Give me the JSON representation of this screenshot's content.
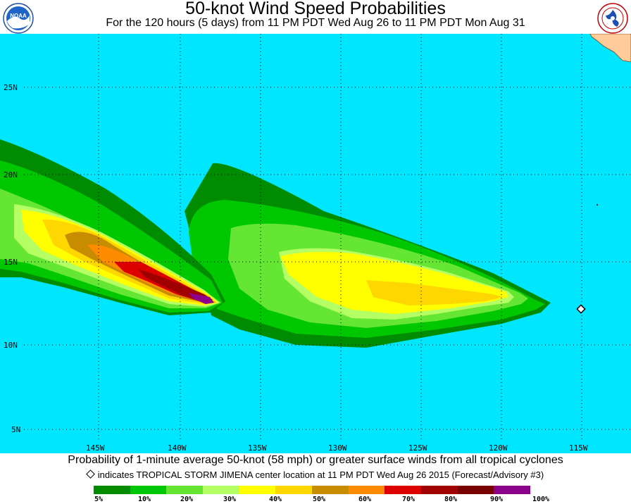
{
  "header": {
    "title": "50-knot Wind Speed Probabilities",
    "subtitle": "For the 120 hours (5 days) from 11 PM PDT Wed Aug 26 to 11 PM PDT Mon Aug 31",
    "left_logo": {
      "text": "NOAA",
      "icon": "noaa-logo"
    },
    "right_logo": {
      "text": "NATIONAL WEATHER SERVICE",
      "icon": "nws-logo"
    }
  },
  "map": {
    "ocean_color": "#00e6ff",
    "land_color": "#ffcc99",
    "lat_labels": [
      "25N",
      "20N",
      "15N",
      "10N",
      "5N"
    ],
    "lon_labels": [
      "145W",
      "140W",
      "135W",
      "130W",
      "125W",
      "120W",
      "115W"
    ],
    "storm_center": {
      "name": "TROPICAL STORM JIMENA",
      "lat": 12.4,
      "lon": -115.7
    }
  },
  "footer": {
    "probability_text": "Probability of 1-minute average 50-knot (58 mph) or greater surface winds from all tropical cyclones",
    "center_text": "indicates TROPICAL STORM JIMENA center location at 11 PM PDT Wed Aug 26 2015 (Forecast/Advisory #3)"
  },
  "legend": {
    "colors": [
      "#008c00",
      "#00c800",
      "#64e632",
      "#b4ff64",
      "#ffff00",
      "#ffd700",
      "#c88c00",
      "#ff8c00",
      "#dc0000",
      "#a00000",
      "#780000",
      "#8c008c"
    ],
    "labels": [
      "5%",
      "10%",
      "20%",
      "30%",
      "40%",
      "50%",
      "60%",
      "70%",
      "80%",
      "90%",
      "100%"
    ]
  }
}
